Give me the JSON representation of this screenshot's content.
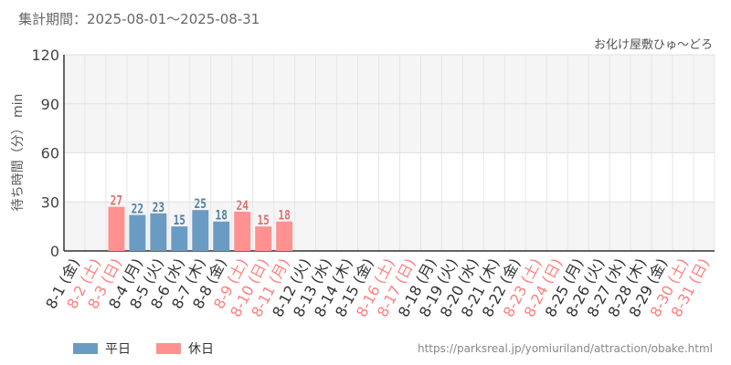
{
  "header": {
    "period": "集計期間：2025-08-01～2025-08-31",
    "attraction": "お化け屋敷ひゅ～どろ"
  },
  "legend": {
    "weekday": "平日",
    "holiday": "休日"
  },
  "source_url": "https://parksreal.jp/yomiuriland/attraction/obake.html",
  "colors": {
    "weekday": "#6a9bc3",
    "holiday": "#ff9191",
    "weekday_label": "#4d7fa8",
    "holiday_label": "#e07070",
    "weekday_tick": "#333333",
    "holiday_tick": "#ff7f7f"
  },
  "chart_data": {
    "type": "bar",
    "ylabel": "待ち時間（分） min",
    "ylim": [
      0,
      120
    ],
    "yticks": [
      0,
      30,
      60,
      90,
      120
    ],
    "grid": true,
    "categories": [
      "8-1 (金)",
      "8-2 (土)",
      "8-3 (日)",
      "8-4 (月)",
      "8-5 (火)",
      "8-6 (水)",
      "8-7 (木)",
      "8-8 (金)",
      "8-9 (土)",
      "8-10 (日)",
      "8-11 (月)",
      "8-12 (火)",
      "8-13 (水)",
      "8-14 (木)",
      "8-15 (金)",
      "8-16 (土)",
      "8-17 (日)",
      "8-18 (月)",
      "8-19 (火)",
      "8-20 (水)",
      "8-21 (木)",
      "8-22 (金)",
      "8-23 (土)",
      "8-24 (日)",
      "8-25 (月)",
      "8-26 (火)",
      "8-27 (水)",
      "8-28 (木)",
      "8-29 (金)",
      "8-30 (土)",
      "8-31 (日)"
    ],
    "day_type": [
      "weekday",
      "holiday",
      "holiday",
      "weekday",
      "weekday",
      "weekday",
      "weekday",
      "weekday",
      "holiday",
      "holiday",
      "holiday",
      "weekday",
      "weekday",
      "weekday",
      "weekday",
      "holiday",
      "holiday",
      "weekday",
      "weekday",
      "weekday",
      "weekday",
      "weekday",
      "holiday",
      "holiday",
      "weekday",
      "weekday",
      "weekday",
      "weekday",
      "weekday",
      "holiday",
      "holiday"
    ],
    "values": [
      null,
      null,
      27,
      22,
      23,
      15,
      25,
      18,
      24,
      15,
      18,
      null,
      null,
      null,
      null,
      null,
      null,
      null,
      null,
      null,
      null,
      null,
      null,
      null,
      null,
      null,
      null,
      null,
      null,
      null,
      null
    ],
    "series": [
      {
        "name": "平日",
        "type_key": "weekday"
      },
      {
        "name": "休日",
        "type_key": "holiday"
      }
    ]
  }
}
